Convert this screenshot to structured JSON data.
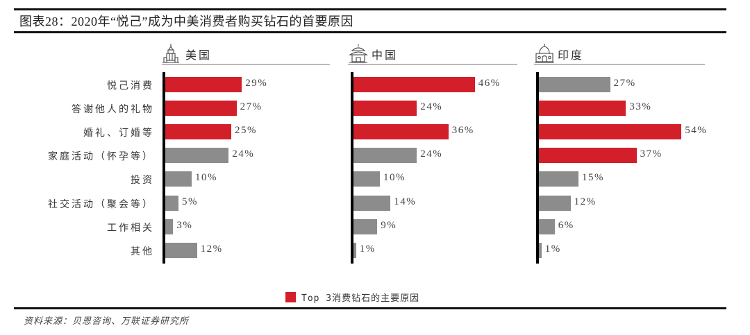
{
  "title": "图表28：2020年“悦己”成为中美消费者购买钻石的首要原因",
  "colors": {
    "highlight": "#D21F2A",
    "other": "#8C8C8C",
    "axis": "#000000"
  },
  "chart_data": {
    "type": "bar",
    "orientation": "horizontal",
    "title": "图表28：2020年“悦己”成为中美消费者购买钻石的首要原因",
    "categories": [
      "悦己消费",
      "答谢他人的礼物",
      "婚礼、订婚等",
      "家庭活动（怀孕等）",
      "投资",
      "社交活动（聚会等）",
      "工作相关",
      "其他"
    ],
    "unit": "%",
    "panels": [
      {
        "name": "美国",
        "icon": "skyscraper-icon",
        "values": [
          29,
          27,
          25,
          24,
          10,
          5,
          3,
          12
        ],
        "labels": [
          "29%",
          "27%",
          "25%",
          "24%",
          "10%",
          "5%",
          "3%",
          "12%"
        ],
        "top3": [
          true,
          true,
          true,
          false,
          false,
          false,
          false,
          false
        ]
      },
      {
        "name": "中国",
        "icon": "temple-icon",
        "values": [
          46,
          24,
          36,
          24,
          10,
          14,
          9,
          1
        ],
        "labels": [
          "46%",
          "24%",
          "36%",
          "24%",
          "10%",
          "14%",
          "9%",
          "1%"
        ],
        "top3": [
          true,
          true,
          true,
          false,
          false,
          false,
          false,
          false
        ]
      },
      {
        "name": "印度",
        "icon": "dome-palace-icon",
        "values": [
          27,
          33,
          54,
          37,
          15,
          12,
          6,
          1
        ],
        "labels": [
          "27%",
          "33%",
          "54%",
          "37%",
          "15%",
          "12%",
          "6%",
          "1%"
        ],
        "top3": [
          false,
          true,
          true,
          true,
          false,
          false,
          false,
          false
        ]
      }
    ],
    "legend": [
      {
        "label": "Top 3消费钻石的主要原因",
        "color": "#D21F2A"
      }
    ],
    "legend_position": "bottom-center",
    "grid": false,
    "xlim": [
      0,
      60
    ]
  },
  "legend": {
    "label": "Top 3消费钻石的主要原因"
  },
  "source": "资料来源：贝恩咨询、万联证券研究所"
}
